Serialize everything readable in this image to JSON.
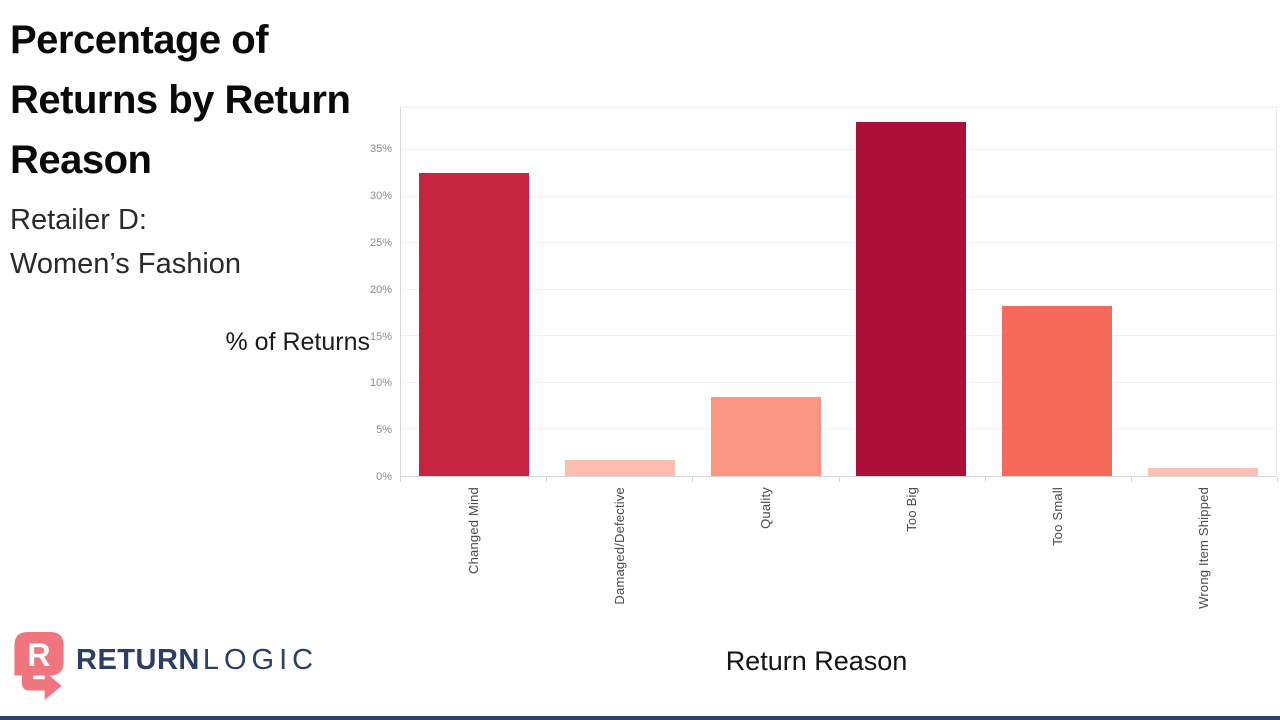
{
  "page": {
    "background": "#ffffff",
    "footer_bar_color": "#2e4369"
  },
  "header": {
    "title": "Percentage of Returns by Return Reason",
    "title_lines": [
      "Percentage of",
      "Returns by Return",
      "Reason"
    ],
    "subtitle_lines": [
      "Retailer D:",
      "Women’s Fashion"
    ]
  },
  "chart_data": {
    "type": "bar",
    "title": "Percentage of Returns by Return Reason",
    "subtitle": "Retailer D: Women’s Fashion",
    "categories": [
      "Changed Mind",
      "Damaged/Defective",
      "Quality",
      "Too Big",
      "Too Small",
      "Wrong Item Shipped"
    ],
    "values": [
      32.5,
      1.7,
      8.5,
      38.0,
      18.2,
      0.9
    ],
    "bar_colors": [
      "#c52441",
      "#fcbdb1",
      "#fa9583",
      "#ab1038",
      "#f4695a",
      "#fcc1b5"
    ],
    "xlabel": "Return Reason",
    "ylabel": "% of Returns",
    "ylim": [
      0,
      39.5
    ],
    "yticks": [
      0,
      5,
      10,
      15,
      20,
      25,
      30,
      35
    ],
    "ytick_suffix": "%",
    "grid": "horizontal",
    "legend": "none",
    "tick_color": "#8b8b90",
    "gridline_color": "#f0f0f3",
    "axis_color": "#d7d7d9"
  },
  "logo": {
    "brand_bold": "RETURN",
    "brand_light": "LOGIC",
    "icon_color": "#f0757e",
    "text_color": "#2b3f66"
  }
}
